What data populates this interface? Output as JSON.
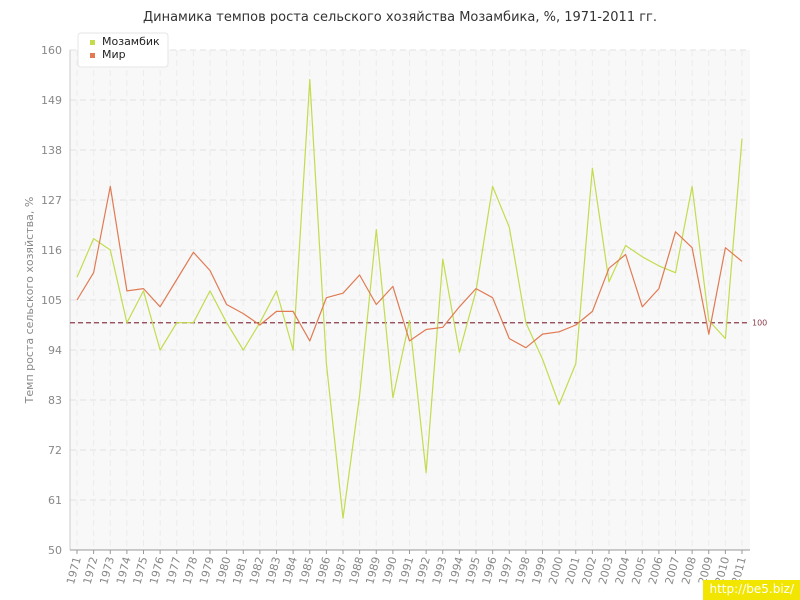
{
  "chart_data": {
    "type": "line",
    "title": "Динамика темпов роста сельского хозяйства Мозамбика, %, 1971-2011 гг.",
    "ylabel": "Темп роста сельского хозяйства, %",
    "xlabel": "",
    "ylim": [
      50,
      160
    ],
    "yticks": [
      50,
      61,
      72,
      83,
      94,
      105,
      116,
      127,
      138,
      149,
      160
    ],
    "grid": true,
    "legend_position": "top-left",
    "categories": [
      "1971",
      "1972",
      "1973",
      "1974",
      "1975",
      "1976",
      "1977",
      "1978",
      "1979",
      "1980",
      "1981",
      "1982",
      "1983",
      "1984",
      "1985",
      "1986",
      "1987",
      "1988",
      "1989",
      "1990",
      "1991",
      "1992",
      "1993",
      "1994",
      "1995",
      "1996",
      "1997",
      "1998",
      "1999",
      "2000",
      "2001",
      "2002",
      "2003",
      "2004",
      "2005",
      "2006",
      "2007",
      "2008",
      "2009",
      "2010",
      "2011"
    ],
    "series": [
      {
        "name": "Мозамбик",
        "color": "#c2dc4e",
        "values": [
          110,
          118.5,
          116,
          100,
          107,
          94,
          100,
          100,
          107,
          100,
          94,
          100,
          107,
          94,
          153.5,
          91,
          57,
          84,
          120.5,
          83.5,
          100.5,
          67,
          114,
          93.5,
          107,
          130,
          121,
          100,
          92,
          82,
          91,
          134,
          109,
          117,
          114.5,
          112.5,
          111,
          130,
          100.5,
          96.5,
          140.5
        ]
      },
      {
        "name": "Мир",
        "color": "#e07b53",
        "values": [
          105,
          111,
          130,
          107,
          107.5,
          103.5,
          109.5,
          115.5,
          111.5,
          104,
          102,
          99.5,
          102.5,
          102.5,
          96,
          105.5,
          106.5,
          110.5,
          104,
          108,
          96,
          98.5,
          99,
          103.5,
          107.5,
          105.5,
          96.5,
          94.5,
          97.5,
          98,
          99.5,
          102.5,
          112,
          115,
          103.5,
          107.5,
          120,
          116.5,
          97.5,
          116.5,
          113.5
        ]
      }
    ],
    "reference_line": {
      "value": 100,
      "label": "100",
      "color": "#8a3a4a"
    }
  },
  "watermark": "http://be5.biz/"
}
